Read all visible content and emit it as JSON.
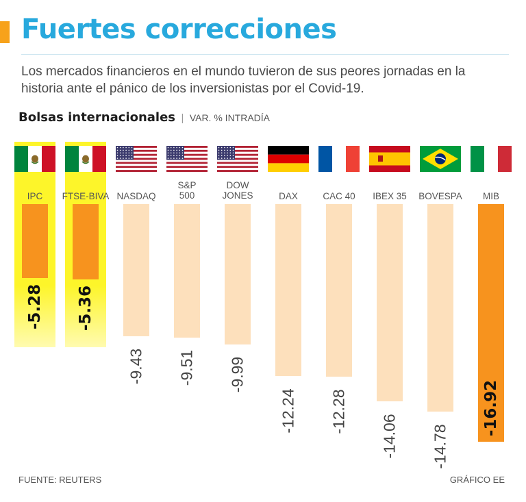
{
  "header": {
    "title": "Fuertes correcciones",
    "subtitle": "Los mercados financieros en el mundo tuvieron de sus peores jornadas en la historia ante el pánico de los inversionistas por el Covid-19.",
    "section_title": "Bolsas internacionales",
    "section_separator": "|",
    "section_unit": "VAR. % INTRADÍA"
  },
  "footer": {
    "source": "FUENTE: REUTERS",
    "credit": "GRÁFICO EE"
  },
  "colors": {
    "title": "#28a9dd",
    "accent": "#f7a21b",
    "bar_strong": "#f7931e",
    "bar_light": "#fde0bc",
    "highlight": "#fdf52a"
  },
  "chart_data": {
    "type": "bar",
    "orientation": "vertical",
    "title": "Bolsas internacionales",
    "subtitle": "VAR. % INTRADÍA",
    "xlabel": "",
    "ylabel": "",
    "ylim": [
      -16.92,
      0
    ],
    "grid": false,
    "legend": "none",
    "categories": [
      "IPC",
      "FTSE-BIVA",
      "NASDAQ",
      "S&P 500",
      "DOW JONES",
      "DAX",
      "CAC 40",
      "IBEX 35",
      "BOVESPA",
      "MIB"
    ],
    "label_lines": [
      [
        "IPC"
      ],
      [
        "FTSE-BIVA"
      ],
      [
        "NASDAQ"
      ],
      [
        "S&P",
        "500"
      ],
      [
        "DOW",
        "JONES"
      ],
      [
        "DAX"
      ],
      [
        "CAC 40"
      ],
      [
        "IBEX 35"
      ],
      [
        "BOVESPA"
      ],
      [
        "MIB"
      ]
    ],
    "flags": [
      "mexico-flag",
      "mexico-flag",
      "usa-flag",
      "usa-flag",
      "usa-flag",
      "germany-flag",
      "france-flag",
      "spain-flag",
      "brazil-flag",
      "italy-flag"
    ],
    "values": [
      -5.28,
      -5.36,
      -9.43,
      -9.51,
      -9.99,
      -12.24,
      -12.28,
      -14.06,
      -14.78,
      -16.92
    ],
    "value_labels": [
      "-5.28",
      "-5.36",
      "-9.43",
      "-9.51",
      "-9.99",
      "-12.24",
      "-12.28",
      "-14.06",
      "-14.78",
      "-16.92"
    ],
    "highlighted": [
      "IPC",
      "FTSE-BIVA"
    ],
    "emphasized": [
      "IPC",
      "FTSE-BIVA",
      "MIB"
    ]
  }
}
